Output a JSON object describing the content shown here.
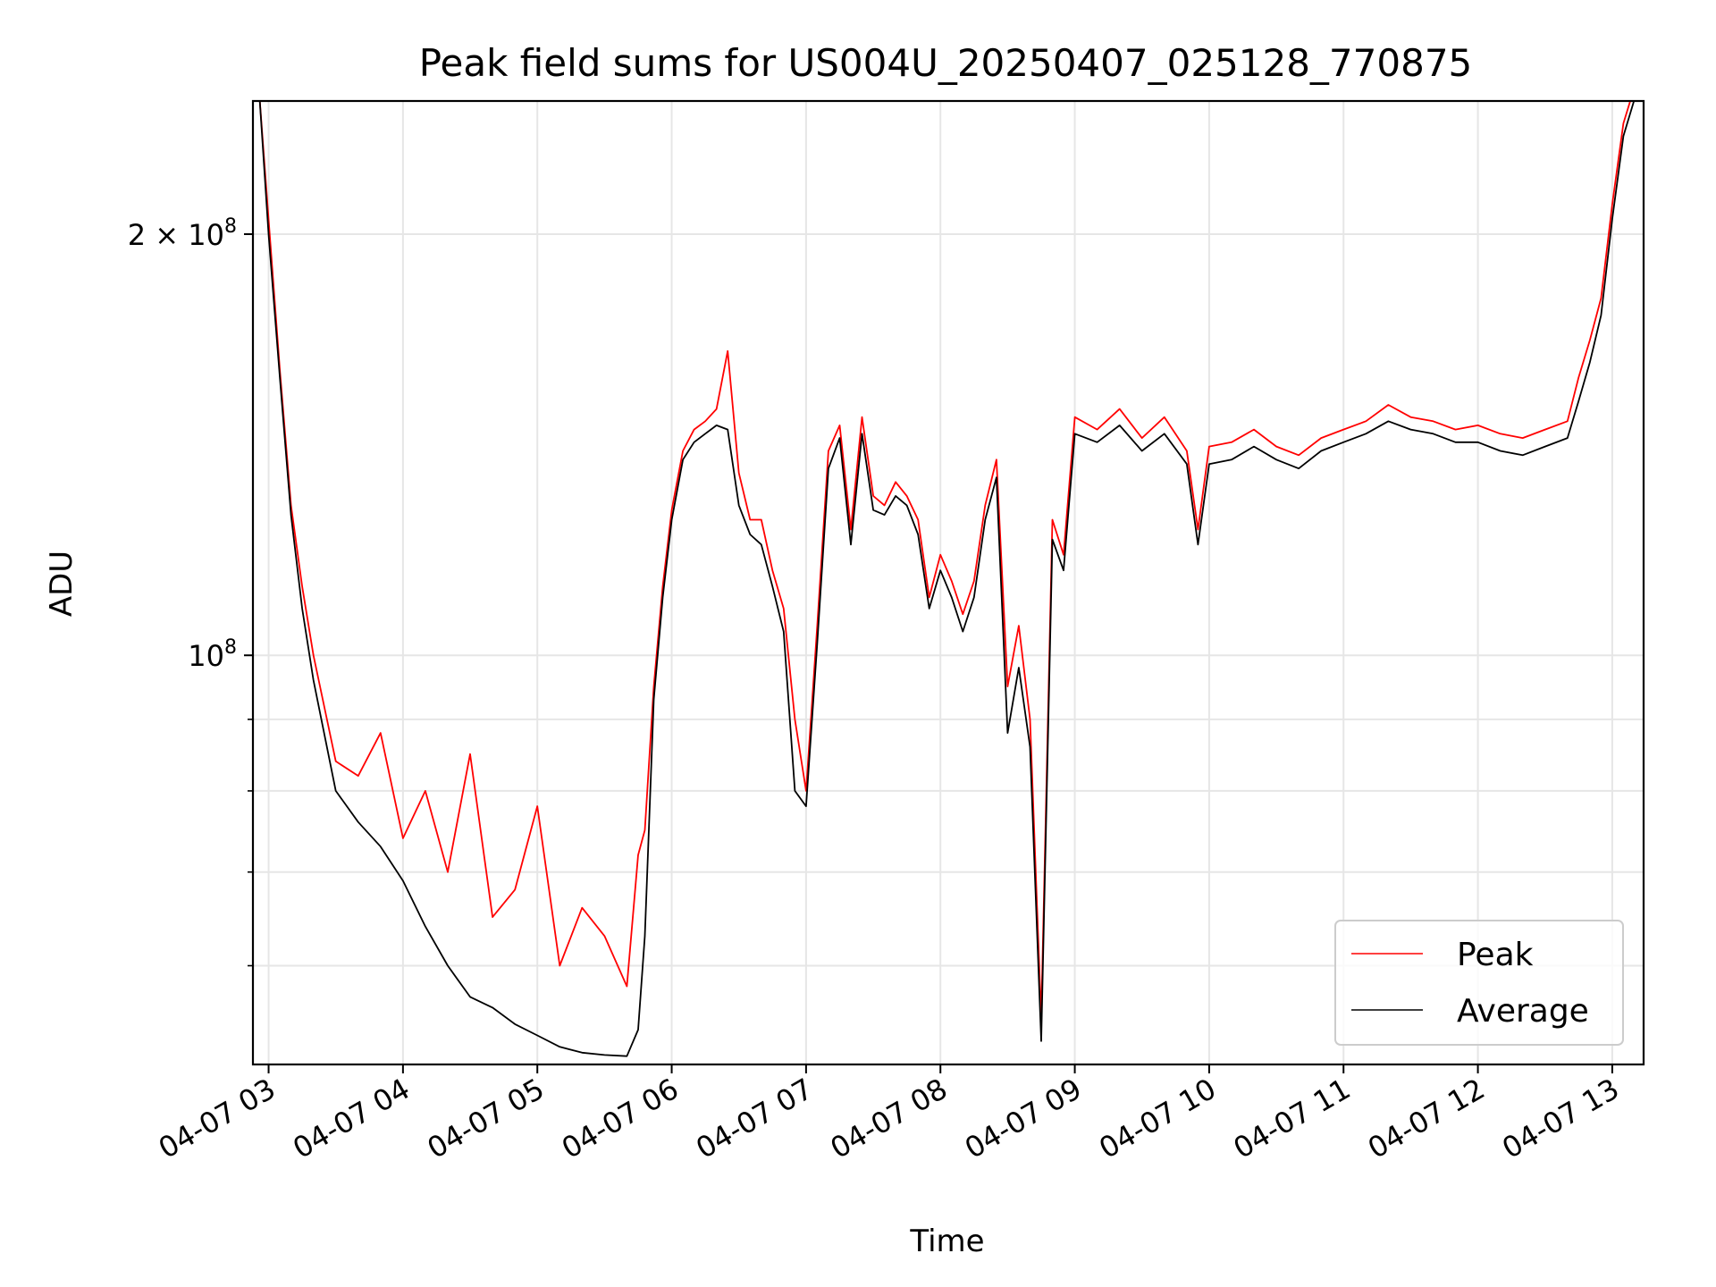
{
  "chart_data": {
    "type": "line",
    "title": "Peak field sums for US004U_20250407_025128_770875",
    "xlabel": "Time",
    "ylabel": "ADU",
    "y_scale": "log",
    "ylim": [
      51000000,
      249000000
    ],
    "xlim": [
      "04-07 02:53",
      "04-07 13:14"
    ],
    "x_ticks": [
      "04-07 03",
      "04-07 04",
      "04-07 05",
      "04-07 06",
      "04-07 07",
      "04-07 08",
      "04-07 09",
      "04-07 10",
      "04-07 11",
      "04-07 12",
      "04-07 13"
    ],
    "y_ticks": [
      {
        "value": 100000000,
        "base": "10",
        "exp": "8",
        "mult": ""
      },
      {
        "value": 200000000,
        "base": "10",
        "exp": "8",
        "mult": "2 × "
      }
    ],
    "y_minor_ticks": [
      60000000,
      70000000,
      80000000,
      90000000
    ],
    "grid": true,
    "legend": "lower-right",
    "series": [
      {
        "name": "Peak",
        "color": "#ff0000",
        "x": [
          "04-07 02:56",
          "04-07 03:00",
          "04-07 03:05",
          "04-07 03:10",
          "04-07 03:15",
          "04-07 03:20",
          "04-07 03:30",
          "04-07 03:40",
          "04-07 03:50",
          "04-07 04:00",
          "04-07 04:10",
          "04-07 04:20",
          "04-07 04:30",
          "04-07 04:40",
          "04-07 04:50",
          "04-07 05:00",
          "04-07 05:10",
          "04-07 05:20",
          "04-07 05:30",
          "04-07 05:40",
          "04-07 05:45",
          "04-07 05:48",
          "04-07 05:52",
          "04-07 05:56",
          "04-07 06:00",
          "04-07 06:05",
          "04-07 06:10",
          "04-07 06:15",
          "04-07 06:20",
          "04-07 06:25",
          "04-07 06:30",
          "04-07 06:35",
          "04-07 06:40",
          "04-07 06:45",
          "04-07 06:50",
          "04-07 06:55",
          "04-07 07:00",
          "04-07 07:05",
          "04-07 07:10",
          "04-07 07:15",
          "04-07 07:20",
          "04-07 07:25",
          "04-07 07:30",
          "04-07 07:35",
          "04-07 07:40",
          "04-07 07:45",
          "04-07 07:50",
          "04-07 07:55",
          "04-07 08:00",
          "04-07 08:05",
          "04-07 08:10",
          "04-07 08:15",
          "04-07 08:20",
          "04-07 08:25",
          "04-07 08:30",
          "04-07 08:35",
          "04-07 08:40",
          "04-07 08:45",
          "04-07 08:50",
          "04-07 08:55",
          "04-07 09:00",
          "04-07 09:10",
          "04-07 09:20",
          "04-07 09:30",
          "04-07 09:40",
          "04-07 09:50",
          "04-07 09:55",
          "04-07 10:00",
          "04-07 10:10",
          "04-07 10:20",
          "04-07 10:30",
          "04-07 10:40",
          "04-07 10:50",
          "04-07 11:00",
          "04-07 11:10",
          "04-07 11:20",
          "04-07 11:30",
          "04-07 11:40",
          "04-07 11:50",
          "04-07 12:00",
          "04-07 12:10",
          "04-07 12:20",
          "04-07 12:30",
          "04-07 12:40",
          "04-07 12:45",
          "04-07 12:50",
          "04-07 12:55",
          "04-07 13:00",
          "04-07 13:05",
          "04-07 13:10"
        ],
        "y": [
          250000000,
          205000000,
          160000000,
          128000000,
          112000000,
          100000000,
          84000000,
          82000000,
          88000000,
          74000000,
          80000000,
          70000000,
          85000000,
          65000000,
          68000000,
          78000000,
          60000000,
          66000000,
          63000000,
          58000000,
          72000000,
          75000000,
          95000000,
          112000000,
          127000000,
          140000000,
          145000000,
          147000000,
          150000000,
          165000000,
          135000000,
          125000000,
          125000000,
          115000000,
          108000000,
          90000000,
          80000000,
          105000000,
          140000000,
          146000000,
          123000000,
          148000000,
          130000000,
          128000000,
          133000000,
          130000000,
          125000000,
          110000000,
          118000000,
          113000000,
          107000000,
          113000000,
          128000000,
          138000000,
          95000000,
          105000000,
          90000000,
          55000000,
          125000000,
          118000000,
          148000000,
          145000000,
          150000000,
          143000000,
          148000000,
          140000000,
          123000000,
          141000000,
          142000000,
          145000000,
          141000000,
          139000000,
          143000000,
          145000000,
          147000000,
          151000000,
          148000000,
          147000000,
          145000000,
          146000000,
          144000000,
          143000000,
          145000000,
          147000000,
          158000000,
          168000000,
          180000000,
          210000000,
          240000000,
          255000000
        ]
      },
      {
        "name": "Average",
        "color": "#000000",
        "x": [
          "04-07 02:56",
          "04-07 03:00",
          "04-07 03:05",
          "04-07 03:10",
          "04-07 03:15",
          "04-07 03:20",
          "04-07 03:30",
          "04-07 03:40",
          "04-07 03:50",
          "04-07 04:00",
          "04-07 04:10",
          "04-07 04:20",
          "04-07 04:30",
          "04-07 04:40",
          "04-07 04:50",
          "04-07 05:00",
          "04-07 05:10",
          "04-07 05:20",
          "04-07 05:30",
          "04-07 05:40",
          "04-07 05:45",
          "04-07 05:48",
          "04-07 05:52",
          "04-07 05:56",
          "04-07 06:00",
          "04-07 06:05",
          "04-07 06:10",
          "04-07 06:15",
          "04-07 06:20",
          "04-07 06:25",
          "04-07 06:30",
          "04-07 06:35",
          "04-07 06:40",
          "04-07 06:45",
          "04-07 06:50",
          "04-07 06:55",
          "04-07 07:00",
          "04-07 07:05",
          "04-07 07:10",
          "04-07 07:15",
          "04-07 07:20",
          "04-07 07:25",
          "04-07 07:30",
          "04-07 07:35",
          "04-07 07:40",
          "04-07 07:45",
          "04-07 07:50",
          "04-07 07:55",
          "04-07 08:00",
          "04-07 08:05",
          "04-07 08:10",
          "04-07 08:15",
          "04-07 08:20",
          "04-07 08:25",
          "04-07 08:30",
          "04-07 08:35",
          "04-07 08:40",
          "04-07 08:45",
          "04-07 08:50",
          "04-07 08:55",
          "04-07 09:00",
          "04-07 09:10",
          "04-07 09:20",
          "04-07 09:30",
          "04-07 09:40",
          "04-07 09:50",
          "04-07 09:55",
          "04-07 10:00",
          "04-07 10:10",
          "04-07 10:20",
          "04-07 10:30",
          "04-07 10:40",
          "04-07 10:50",
          "04-07 11:00",
          "04-07 11:10",
          "04-07 11:20",
          "04-07 11:30",
          "04-07 11:40",
          "04-07 11:50",
          "04-07 12:00",
          "04-07 12:10",
          "04-07 12:20",
          "04-07 12:30",
          "04-07 12:40",
          "04-07 12:45",
          "04-07 12:50",
          "04-07 12:55",
          "04-07 13:00",
          "04-07 13:05",
          "04-07 13:10"
        ],
        "y": [
          250000000,
          200000000,
          158000000,
          126000000,
          108000000,
          96000000,
          80000000,
          76000000,
          73000000,
          69000000,
          64000000,
          60000000,
          57000000,
          56000000,
          54500000,
          53500000,
          52500000,
          52000000,
          51800000,
          51700000,
          54000000,
          63000000,
          93000000,
          110000000,
          125000000,
          138000000,
          142000000,
          144000000,
          146000000,
          145000000,
          128000000,
          122000000,
          120000000,
          112000000,
          104000000,
          80000000,
          78000000,
          102000000,
          136000000,
          143000000,
          120000000,
          144000000,
          127000000,
          126000000,
          130000000,
          128000000,
          122000000,
          108000000,
          115000000,
          110000000,
          104000000,
          110000000,
          125000000,
          134000000,
          88000000,
          98000000,
          86000000,
          53000000,
          121000000,
          115000000,
          144000000,
          142000000,
          146000000,
          140000000,
          144000000,
          137000000,
          120000000,
          137000000,
          138000000,
          141000000,
          138000000,
          136000000,
          140000000,
          142000000,
          144000000,
          147000000,
          145000000,
          144000000,
          142000000,
          142000000,
          140000000,
          139000000,
          141000000,
          143000000,
          152000000,
          162000000,
          175000000,
          205000000,
          235000000,
          250000000
        ]
      }
    ]
  }
}
